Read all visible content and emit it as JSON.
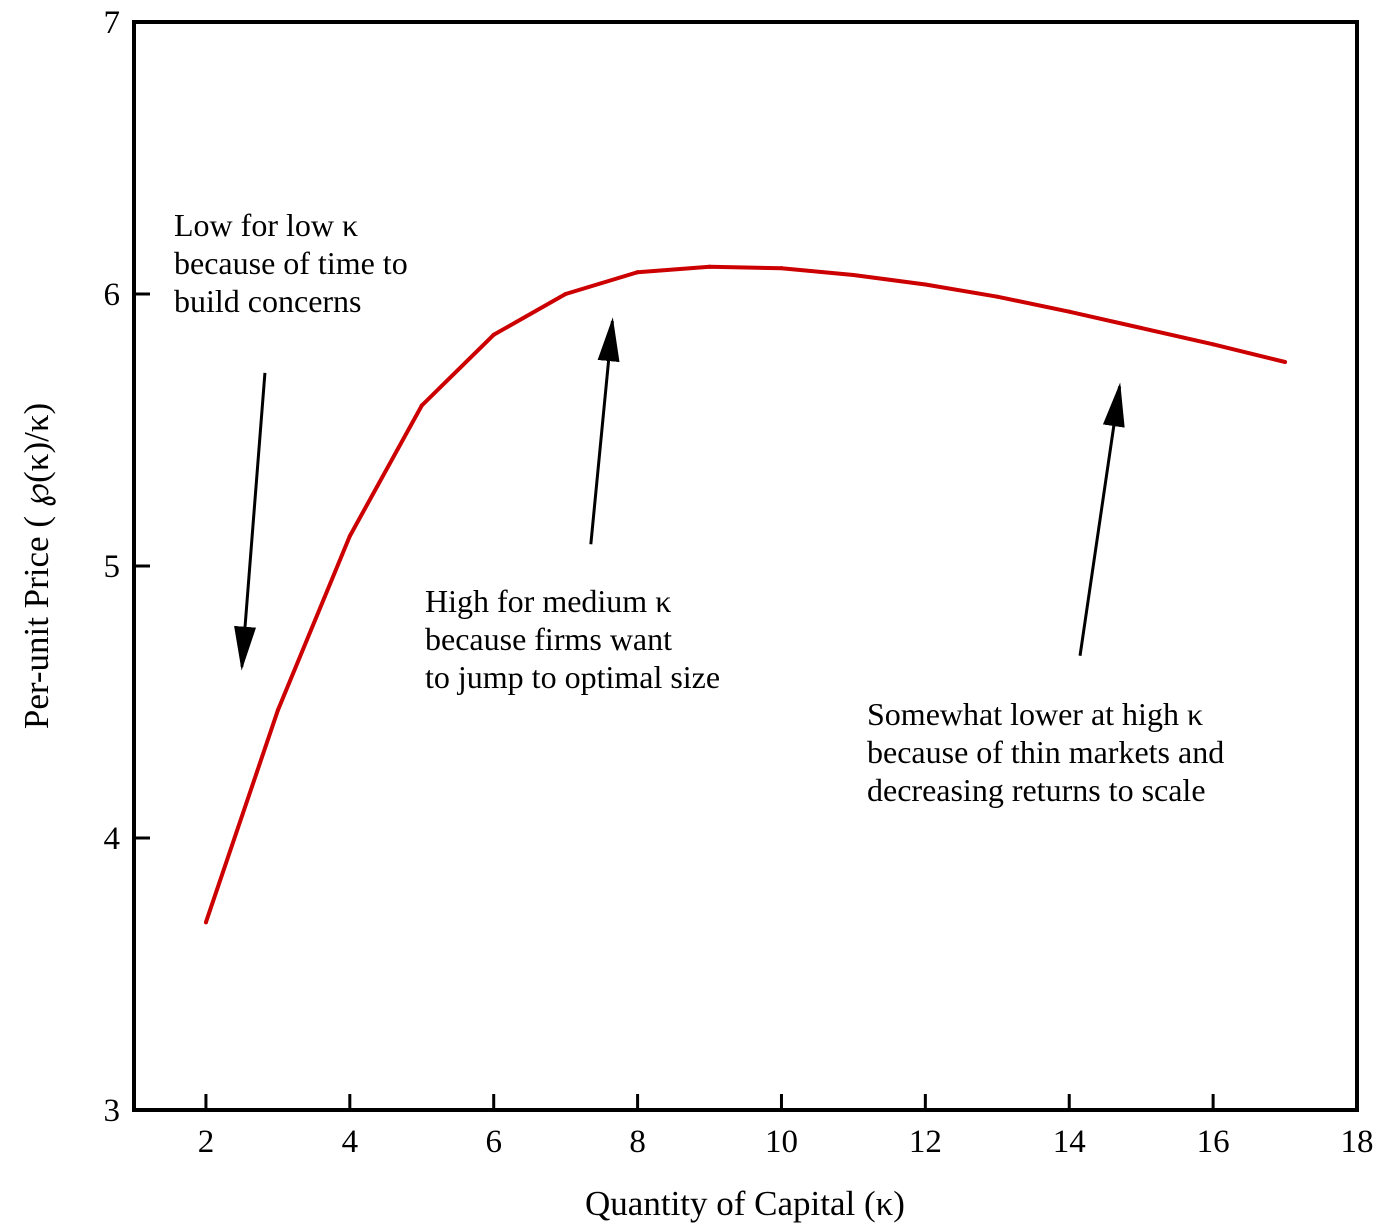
{
  "chart_data": {
    "type": "line",
    "title": "",
    "xlabel": "Quantity of Capital (κ)",
    "ylabel": "Per-unit Price ( ℘(κ)/κ)",
    "xlim": [
      1,
      18
    ],
    "ylim": [
      3,
      7
    ],
    "x_ticks": [
      2,
      4,
      6,
      8,
      10,
      12,
      14,
      16,
      18
    ],
    "y_ticks": [
      3,
      4,
      5,
      6,
      7
    ],
    "grid": false,
    "legend": "none",
    "series": [
      {
        "color": "#cc0000",
        "x": [
          2,
          3,
          4,
          5,
          6,
          7,
          8,
          9,
          10,
          11,
          12,
          13,
          14,
          15,
          16,
          17
        ],
        "y": [
          3.69,
          4.47,
          5.11,
          5.59,
          5.85,
          6.0,
          6.08,
          6.1,
          6.095,
          6.07,
          6.035,
          5.99,
          5.935,
          5.875,
          5.815,
          5.75
        ]
      }
    ],
    "annotations": [
      {
        "lines": [
          "Low for low κ",
          "because of time to",
          "build concerns"
        ],
        "arrow_from": [
          2.82,
          5.71
        ],
        "arrow_to": [
          2.5,
          4.63
        ]
      },
      {
        "lines": [
          "High for medium κ",
          "because firms want",
          "to jump to optimal size"
        ],
        "arrow_from": [
          7.35,
          5.08
        ],
        "arrow_to": [
          7.65,
          5.9
        ]
      },
      {
        "lines": [
          "Somewhat lower at high κ",
          "because of thin markets and",
          "decreasing returns to scale"
        ],
        "arrow_from": [
          14.15,
          4.67
        ],
        "arrow_to": [
          14.7,
          5.66
        ]
      }
    ]
  }
}
